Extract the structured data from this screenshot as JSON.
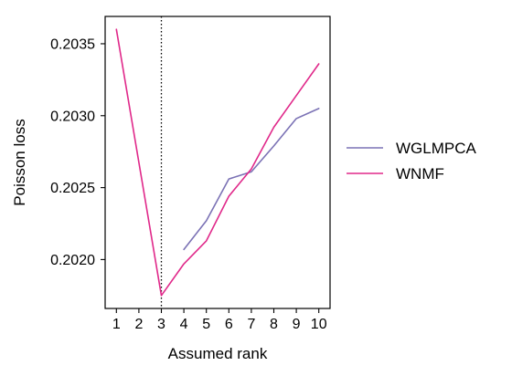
{
  "chart_data": {
    "type": "line",
    "title": "",
    "xlabel": "Assumed rank",
    "ylabel": "Poisson loss",
    "x_ticks": [
      1,
      2,
      3,
      4,
      5,
      6,
      7,
      8,
      9,
      10
    ],
    "y_ticks": [
      "0.2020",
      "0.2025",
      "0.2030",
      "0.2035"
    ],
    "y_tick_values": [
      0.202,
      0.2025,
      0.203,
      0.2035
    ],
    "xlim": [
      0.5,
      10.5
    ],
    "ylim": [
      0.20166,
      0.20369
    ],
    "grid": false,
    "legend_position": "right-outside",
    "vline": {
      "x": 3,
      "style": "dotted",
      "color": "#000000"
    },
    "series": [
      {
        "name": "WGLMPCA",
        "color": "#7b72b5",
        "x": [
          4,
          5,
          6,
          7,
          8,
          9,
          10
        ],
        "y": [
          0.20207,
          0.20227,
          0.20256,
          0.20261,
          0.20279,
          0.20298,
          0.20305
        ]
      },
      {
        "name": "WNMF",
        "color": "#e0298a",
        "x": [
          1,
          3,
          4,
          5,
          6,
          7,
          8,
          9,
          10
        ],
        "y": [
          0.2036,
          0.20175,
          0.20197,
          0.20213,
          0.20244,
          0.20263,
          0.20292,
          0.20314,
          0.20336
        ]
      }
    ]
  }
}
